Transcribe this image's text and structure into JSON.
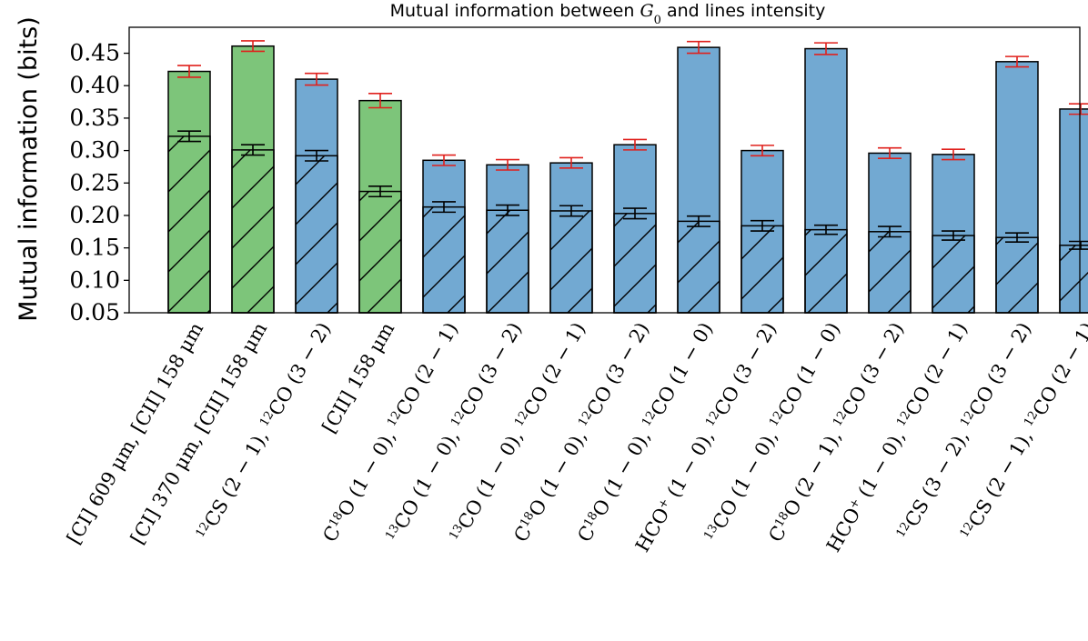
{
  "chart_data": {
    "type": "bar",
    "title_parts": [
      "Mutual information between ",
      "G",
      "0",
      " and lines intensity"
    ],
    "ylabel": "Mutual information (bits)",
    "ylim": [
      0.05,
      0.49
    ],
    "yticks": [
      "0.05",
      "0.10",
      "0.15",
      "0.20",
      "0.25",
      "0.30",
      "0.35",
      "0.40",
      "0.45"
    ],
    "colors": {
      "green": "#7dc57a",
      "blue": "#72a9d2",
      "error_red": "#e0201c",
      "error_black": "#000000"
    },
    "bars": [
      {
        "label": [
          {
            "t": "[CI] 609 μm, [CII] 158 μm"
          }
        ],
        "total": 0.422,
        "total_err": 0.009,
        "single": 0.322,
        "single_err": 0.008,
        "color": "green"
      },
      {
        "label": [
          {
            "t": "[CI] 370 μm, [CII] 158 μm"
          }
        ],
        "total": 0.461,
        "total_err": 0.008,
        "single": 0.301,
        "single_err": 0.008,
        "color": "green"
      },
      {
        "label": [
          {
            "t": "12",
            "s": 1
          },
          {
            "t": "CS (2 − 1), "
          },
          {
            "t": "12",
            "s": 1
          },
          {
            "t": "CO (3 − 2)"
          }
        ],
        "total": 0.41,
        "total_err": 0.009,
        "single": 0.292,
        "single_err": 0.008,
        "color": "blue"
      },
      {
        "label": [
          {
            "t": "[CII] 158 μm"
          }
        ],
        "total": 0.377,
        "total_err": 0.011,
        "single": 0.237,
        "single_err": 0.008,
        "color": "green"
      },
      {
        "label": [
          {
            "t": "C"
          },
          {
            "t": "18",
            "s": 1
          },
          {
            "t": "O (1 − 0), "
          },
          {
            "t": "12",
            "s": 1
          },
          {
            "t": "CO (2 − 1)"
          }
        ],
        "total": 0.285,
        "total_err": 0.008,
        "single": 0.213,
        "single_err": 0.008,
        "color": "blue"
      },
      {
        "label": [
          {
            "t": "13",
            "s": 1
          },
          {
            "t": "CO (1 − 0), "
          },
          {
            "t": "12",
            "s": 1
          },
          {
            "t": "CO (3 − 2)"
          }
        ],
        "total": 0.278,
        "total_err": 0.008,
        "single": 0.208,
        "single_err": 0.008,
        "color": "blue"
      },
      {
        "label": [
          {
            "t": "13",
            "s": 1
          },
          {
            "t": "CO (1 − 0), "
          },
          {
            "t": "12",
            "s": 1
          },
          {
            "t": "CO (2 − 1)"
          }
        ],
        "total": 0.281,
        "total_err": 0.008,
        "single": 0.207,
        "single_err": 0.008,
        "color": "blue"
      },
      {
        "label": [
          {
            "t": "C"
          },
          {
            "t": "18",
            "s": 1
          },
          {
            "t": "O (1 − 0), "
          },
          {
            "t": "12",
            "s": 1
          },
          {
            "t": "CO (3 − 2)"
          }
        ],
        "total": 0.309,
        "total_err": 0.008,
        "single": 0.203,
        "single_err": 0.008,
        "color": "blue"
      },
      {
        "label": [
          {
            "t": "C"
          },
          {
            "t": "18",
            "s": 1
          },
          {
            "t": "O (1 − 0), "
          },
          {
            "t": "12",
            "s": 1
          },
          {
            "t": "CO (1 − 0)"
          }
        ],
        "total": 0.459,
        "total_err": 0.009,
        "single": 0.191,
        "single_err": 0.008,
        "color": "blue"
      },
      {
        "label": [
          {
            "t": "HCO"
          },
          {
            "t": "+",
            "s": 1
          },
          {
            "t": " (1 − 0), "
          },
          {
            "t": "12",
            "s": 1
          },
          {
            "t": "CO (3 − 2)"
          }
        ],
        "total": 0.3,
        "total_err": 0.008,
        "single": 0.184,
        "single_err": 0.008,
        "color": "blue"
      },
      {
        "label": [
          {
            "t": "13",
            "s": 1
          },
          {
            "t": "CO (1 − 0), "
          },
          {
            "t": "12",
            "s": 1
          },
          {
            "t": "CO (1 − 0)"
          }
        ],
        "total": 0.457,
        "total_err": 0.009,
        "single": 0.178,
        "single_err": 0.007,
        "color": "blue"
      },
      {
        "label": [
          {
            "t": "C"
          },
          {
            "t": "18",
            "s": 1
          },
          {
            "t": "O (2 − 1), "
          },
          {
            "t": "12",
            "s": 1
          },
          {
            "t": "CO (3 − 2)"
          }
        ],
        "total": 0.296,
        "total_err": 0.008,
        "single": 0.175,
        "single_err": 0.008,
        "color": "blue"
      },
      {
        "label": [
          {
            "t": "HCO"
          },
          {
            "t": "+",
            "s": 1
          },
          {
            "t": " (1 − 0), "
          },
          {
            "t": "12",
            "s": 1
          },
          {
            "t": "CO (2 − 1)"
          }
        ],
        "total": 0.294,
        "total_err": 0.008,
        "single": 0.169,
        "single_err": 0.007,
        "color": "blue"
      },
      {
        "label": [
          {
            "t": "12",
            "s": 1
          },
          {
            "t": "CS (3 − 2), "
          },
          {
            "t": "12",
            "s": 1
          },
          {
            "t": "CO (3 − 2)"
          }
        ],
        "total": 0.437,
        "total_err": 0.008,
        "single": 0.166,
        "single_err": 0.007,
        "color": "blue"
      },
      {
        "label": [
          {
            "t": "12",
            "s": 1
          },
          {
            "t": "CS (2 − 1), "
          },
          {
            "t": "12",
            "s": 1
          },
          {
            "t": "CO (2 − 1)"
          }
        ],
        "total": 0.364,
        "total_err": 0.008,
        "single": 0.154,
        "single_err": 0.006,
        "color": "blue"
      }
    ]
  }
}
